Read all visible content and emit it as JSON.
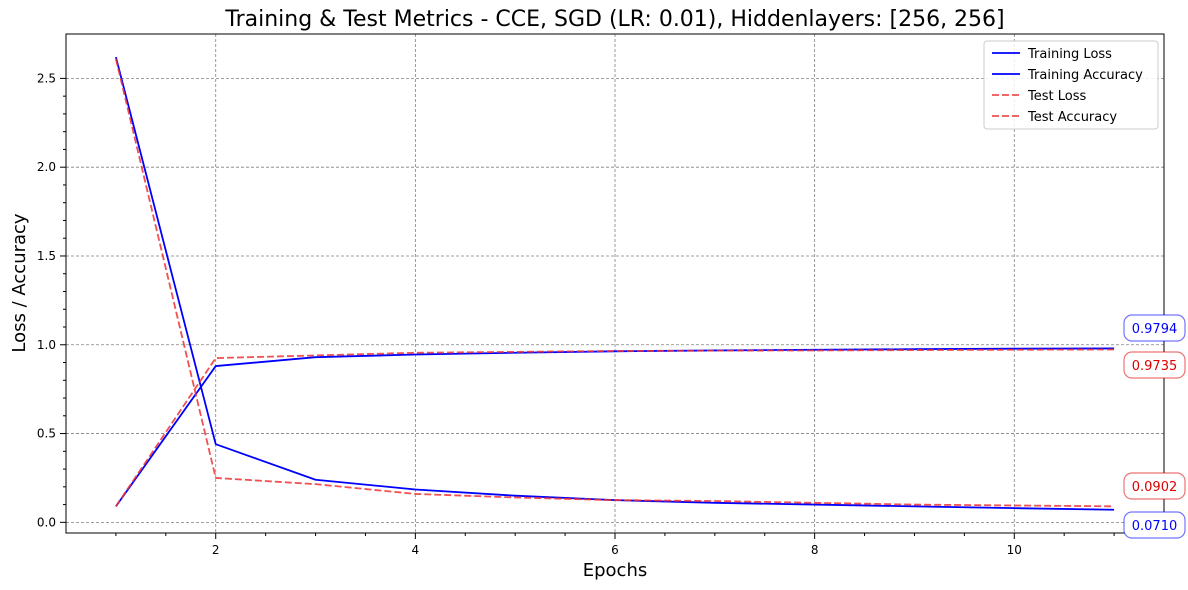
{
  "chart_data": {
    "type": "line",
    "title": "Training & Test Metrics - CCE, SGD (LR: 0.01), Hiddenlayers: [256, 256]",
    "xlabel": "Epochs",
    "ylabel": "Loss / Accuracy",
    "xlim": [
      0.5,
      11.5
    ],
    "ylim": [
      -0.06,
      2.75
    ],
    "xticks": [
      2,
      4,
      6,
      8,
      10
    ],
    "yticks": [
      0.0,
      0.5,
      1.0,
      1.5,
      2.0,
      2.5
    ],
    "xtick_labels": [
      "2",
      "4",
      "6",
      "8",
      "10"
    ],
    "ytick_labels": [
      "0.0",
      "0.5",
      "1.0",
      "1.5",
      "2.0",
      "2.5"
    ],
    "grid": true,
    "legend_position": "top-right",
    "x": [
      1,
      2,
      3,
      4,
      5,
      6,
      7,
      8,
      9,
      10,
      11
    ],
    "series": [
      {
        "name": "Training Loss",
        "color": "#0000ff",
        "style": "solid",
        "values": [
          2.62,
          0.44,
          0.24,
          0.185,
          0.15,
          0.125,
          0.11,
          0.1,
          0.09,
          0.08,
          0.071
        ]
      },
      {
        "name": "Training Accuracy",
        "color": "#0000ff",
        "style": "solid",
        "values": [
          0.09,
          0.88,
          0.93,
          0.945,
          0.955,
          0.963,
          0.968,
          0.972,
          0.975,
          0.978,
          0.9794
        ]
      },
      {
        "name": "Test Loss",
        "color": "#ee3333",
        "style": "dashed",
        "values": [
          2.61,
          0.25,
          0.215,
          0.16,
          0.14,
          0.125,
          0.12,
          0.11,
          0.1,
          0.095,
          0.0902
        ]
      },
      {
        "name": "Test Accuracy",
        "color": "#ee3333",
        "style": "dashed",
        "values": [
          0.09,
          0.925,
          0.94,
          0.955,
          0.96,
          0.965,
          0.967,
          0.968,
          0.97,
          0.972,
          0.9735
        ]
      }
    ],
    "annotations": [
      {
        "text": "0.9794",
        "color": "#0000ff",
        "series": "Training Accuracy",
        "value": 0.9794
      },
      {
        "text": "0.9735",
        "color": "#dd0000",
        "series": "Test Accuracy",
        "value": 0.9735
      },
      {
        "text": "0.0902",
        "color": "#dd0000",
        "series": "Test Loss",
        "value": 0.0902
      },
      {
        "text": "0.0710",
        "color": "#0000ff",
        "series": "Training Loss",
        "value": 0.071
      }
    ]
  }
}
